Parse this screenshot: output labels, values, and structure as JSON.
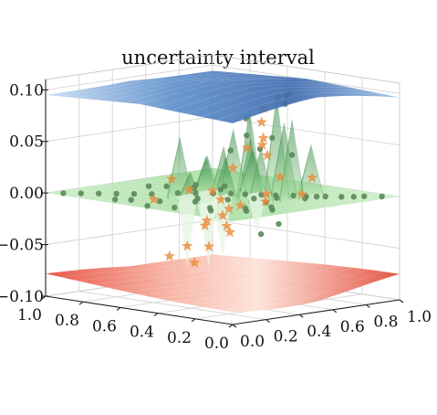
{
  "chart_data": {
    "type": "surface3d",
    "title": "uncertainty interval",
    "xlabel": "",
    "ylabel": "",
    "zlabel": "",
    "x_ticks": [
      "0.0",
      "0.2",
      "0.4",
      "0.6",
      "0.8",
      "1.0"
    ],
    "y_ticks": [
      "0.0",
      "0.2",
      "0.4",
      "0.6",
      "0.8",
      "1.0"
    ],
    "z_ticks": [
      "−0.10",
      "−0.05",
      "0.00",
      "0.05",
      "0.10"
    ],
    "xlim": [
      0,
      1
    ],
    "ylim": [
      0,
      1
    ],
    "zlim": [
      -0.1,
      0.11
    ],
    "grid": true,
    "surfaces": [
      {
        "role": "upper-bound",
        "colormap": "Blues",
        "base_level": 0.105,
        "color": "#4a7cc0"
      },
      {
        "role": "mean",
        "colormap": "Greens",
        "base_level": 0.0,
        "color": "#2e8b3a"
      },
      {
        "role": "lower-bound",
        "colormap": "Reds",
        "base_level": -0.085,
        "color": "#e0473a"
      }
    ],
    "observations": {
      "marker": "circle",
      "color": "#5a8a5a",
      "points": [
        [
          0.95,
          0.05,
          0.0
        ],
        [
          0.9,
          0.1,
          0.0
        ],
        [
          0.86,
          0.12,
          0.0
        ],
        [
          0.82,
          0.15,
          0.0
        ],
        [
          0.78,
          0.2,
          0.0
        ],
        [
          0.75,
          0.22,
          0.0
        ],
        [
          0.72,
          0.25,
          0.0
        ],
        [
          0.7,
          0.3,
          0.0
        ],
        [
          0.68,
          0.22,
          0.0
        ],
        [
          0.65,
          0.35,
          0.0
        ],
        [
          0.62,
          0.4,
          0.0
        ],
        [
          0.6,
          0.3,
          0.0
        ],
        [
          0.58,
          0.45,
          0.0
        ],
        [
          0.55,
          0.5,
          0.0
        ],
        [
          0.52,
          0.35,
          0.0
        ],
        [
          0.5,
          0.55,
          0.0
        ],
        [
          0.48,
          0.25,
          0.0
        ],
        [
          0.45,
          0.6,
          0.0
        ],
        [
          0.42,
          0.4,
          0.0
        ],
        [
          0.4,
          0.65,
          0.0
        ],
        [
          0.35,
          0.5,
          0.0
        ],
        [
          0.3,
          0.7,
          0.0
        ],
        [
          0.28,
          0.45,
          0.0
        ],
        [
          0.25,
          0.75,
          0.0
        ],
        [
          0.2,
          0.8,
          0.0
        ],
        [
          0.18,
          0.55,
          0.0
        ],
        [
          0.15,
          0.85,
          0.0
        ],
        [
          0.12,
          0.65,
          0.0
        ],
        [
          0.1,
          0.9,
          0.0
        ],
        [
          0.08,
          0.7,
          0.0
        ],
        [
          0.05,
          0.95,
          0.0
        ],
        [
          0.3,
          0.2,
          0.0
        ],
        [
          0.25,
          0.15,
          0.0
        ],
        [
          0.2,
          0.3,
          0.0
        ],
        [
          0.15,
          0.25,
          0.0
        ],
        [
          0.1,
          0.4,
          0.0
        ],
        [
          0.05,
          0.5,
          0.0
        ],
        [
          0.4,
          0.15,
          0.0
        ],
        [
          0.35,
          0.1,
          0.0
        ],
        [
          0.6,
          0.6,
          0.0
        ],
        [
          0.55,
          0.7,
          0.0
        ],
        [
          0.5,
          0.8,
          0.0
        ],
        [
          0.45,
          0.85,
          0.0
        ],
        [
          0.62,
          0.75,
          0.0
        ],
        [
          0.68,
          0.65,
          0.0
        ],
        [
          0.58,
          0.2,
          0.045
        ],
        [
          0.55,
          0.28,
          0.06
        ],
        [
          0.5,
          0.3,
          0.05
        ],
        [
          0.45,
          0.33,
          0.08
        ],
        [
          0.6,
          0.25,
          0.1
        ],
        [
          0.42,
          0.3,
          0.065
        ],
        [
          0.38,
          0.35,
          0.05
        ],
        [
          0.65,
          0.3,
          0.09
        ],
        [
          0.5,
          0.2,
          -0.02
        ],
        [
          0.45,
          0.25,
          -0.03
        ]
      ]
    },
    "samples": {
      "marker": "star",
      "color": "#e8893a",
      "points": [
        [
          0.58,
          0.22,
          0.105
        ],
        [
          0.55,
          0.25,
          0.1
        ],
        [
          0.5,
          0.28,
          0.09
        ],
        [
          0.52,
          0.3,
          0.06
        ],
        [
          0.48,
          0.35,
          0.05
        ],
        [
          0.6,
          0.35,
          0.04
        ],
        [
          0.62,
          0.3,
          0.02
        ],
        [
          0.45,
          0.4,
          0.03
        ],
        [
          0.4,
          0.42,
          0.0
        ],
        [
          0.55,
          0.45,
          -0.01
        ],
        [
          0.5,
          0.5,
          -0.02
        ],
        [
          0.65,
          0.4,
          0.0
        ],
        [
          0.35,
          0.45,
          -0.02
        ],
        [
          0.3,
          0.5,
          0.01
        ],
        [
          0.7,
          0.45,
          -0.01
        ],
        [
          0.45,
          0.55,
          -0.03
        ],
        [
          0.6,
          0.55,
          -0.04
        ],
        [
          0.4,
          0.6,
          -0.05
        ],
        [
          0.35,
          0.65,
          -0.06
        ],
        [
          0.55,
          0.6,
          0.0
        ],
        [
          0.25,
          0.55,
          0.02
        ],
        [
          0.2,
          0.6,
          0.0
        ],
        [
          0.5,
          0.65,
          -0.07
        ],
        [
          0.65,
          0.6,
          -0.02
        ],
        [
          0.3,
          0.3,
          -0.02
        ],
        [
          0.25,
          0.35,
          -0.04
        ],
        [
          0.7,
          0.2,
          0.02
        ],
        [
          0.75,
          0.3,
          0.0
        ],
        [
          0.42,
          0.22,
          0.08
        ],
        [
          0.38,
          0.18,
          0.06
        ]
      ]
    }
  }
}
